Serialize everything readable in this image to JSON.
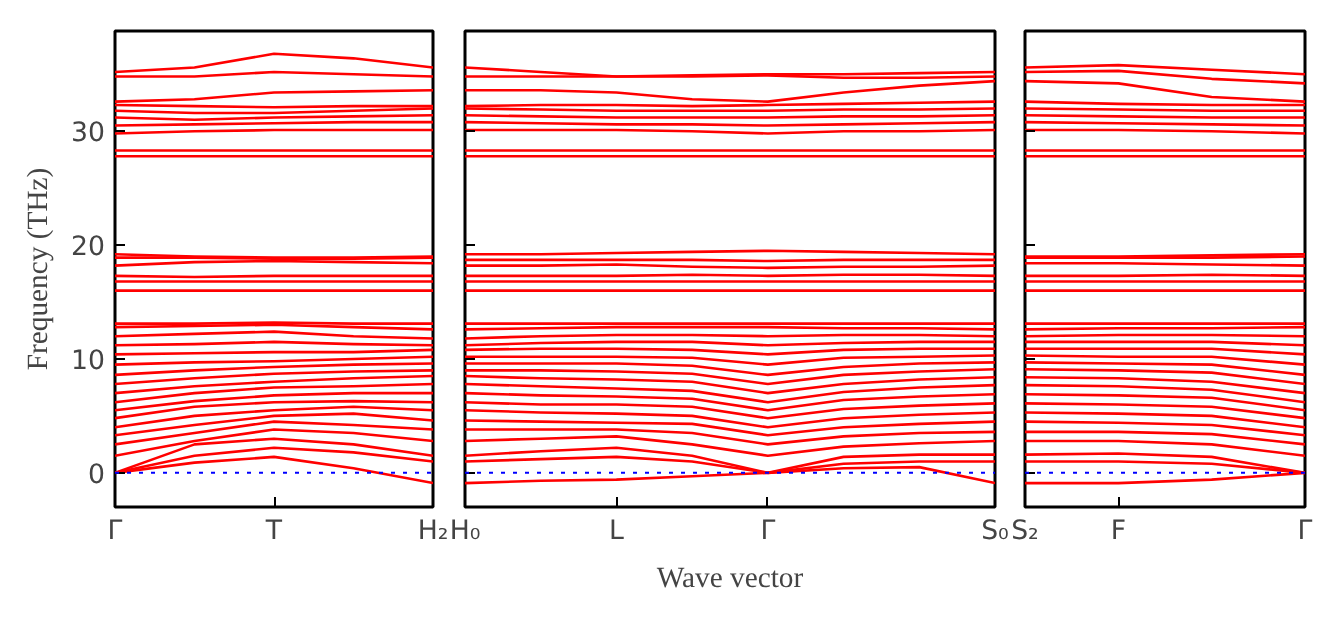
{
  "chart_data": [
    {
      "type": "line",
      "ylabel": "Frequency (THz)",
      "categories": [
        "Γ",
        null,
        "T",
        null,
        "H₂"
      ],
      "ylim": [
        -3,
        38.8
      ],
      "yticks": [
        0,
        10,
        20,
        30
      ],
      "line_style": "solid",
      "marker": "none",
      "ref_lines": [
        {
          "axis": "y",
          "value": 0,
          "color": "#0000ff",
          "line_style": "dotted"
        }
      ],
      "series": [
        {
          "color": "#ff0000",
          "values": [
            0,
            0.9,
            1.4,
            0.4,
            -0.9
          ]
        },
        {
          "color": "#ff0000",
          "values": [
            0,
            1.5,
            2.2,
            1.8,
            1.0
          ]
        },
        {
          "color": "#ff0000",
          "values": [
            0,
            2.5,
            3.0,
            2.5,
            1.5
          ]
        },
        {
          "color": "#ff0000",
          "values": [
            1.5,
            2.8,
            3.8,
            3.5,
            2.8
          ]
        },
        {
          "color": "#ff0000",
          "values": [
            2.5,
            3.5,
            4.5,
            4.2,
            3.8
          ]
        },
        {
          "color": "#ff0000",
          "values": [
            3.3,
            4.2,
            5.0,
            5.2,
            4.6
          ]
        },
        {
          "color": "#ff0000",
          "values": [
            4.0,
            5.0,
            5.5,
            5.8,
            5.5
          ]
        },
        {
          "color": "#ff0000",
          "values": [
            4.8,
            5.8,
            6.2,
            6.3,
            6.2
          ]
        },
        {
          "color": "#ff0000",
          "values": [
            5.5,
            6.3,
            6.8,
            7.0,
            7.0
          ]
        },
        {
          "color": "#ff0000",
          "values": [
            6.2,
            7.0,
            7.5,
            7.6,
            7.8
          ]
        },
        {
          "color": "#ff0000",
          "values": [
            7.0,
            7.6,
            8.0,
            8.3,
            8.5
          ]
        },
        {
          "color": "#ff0000",
          "values": [
            7.8,
            8.3,
            8.7,
            8.9,
            9.0
          ]
        },
        {
          "color": "#ff0000",
          "values": [
            8.6,
            9.0,
            9.3,
            9.5,
            9.6
          ]
        },
        {
          "color": "#ff0000",
          "values": [
            9.5,
            9.7,
            9.8,
            10.0,
            10.2
          ]
        },
        {
          "color": "#ff0000",
          "values": [
            10.4,
            10.5,
            10.6,
            10.6,
            10.8
          ]
        },
        {
          "color": "#ff0000",
          "values": [
            11.2,
            11.3,
            11.5,
            11.3,
            11.2
          ]
        },
        {
          "color": "#ff0000",
          "values": [
            12.0,
            12.2,
            12.4,
            12.0,
            11.8
          ]
        },
        {
          "color": "#ff0000",
          "values": [
            12.8,
            12.9,
            13.0,
            12.8,
            12.6
          ]
        },
        {
          "color": "#ff0000",
          "values": [
            13.1,
            13.1,
            13.2,
            13.1,
            13.1
          ]
        },
        {
          "color": "#ff0000",
          "values": [
            16.0,
            16.0,
            16.0,
            16.0,
            16.0
          ]
        },
        {
          "color": "#ff0000",
          "values": [
            16.8,
            16.8,
            16.8,
            16.8,
            16.8
          ]
        },
        {
          "color": "#ff0000",
          "values": [
            17.3,
            17.2,
            17.3,
            17.3,
            17.3
          ]
        },
        {
          "color": "#ff0000",
          "values": [
            18.2,
            18.5,
            18.6,
            18.5,
            18.4
          ]
        },
        {
          "color": "#ff0000",
          "values": [
            18.9,
            18.9,
            18.8,
            18.8,
            18.9
          ]
        },
        {
          "color": "#ff0000",
          "values": [
            19.2,
            19.0,
            18.9,
            18.9,
            19.0
          ]
        },
        {
          "color": "#ff0000",
          "values": [
            27.8,
            27.8,
            27.8,
            27.8,
            27.8
          ]
        },
        {
          "color": "#ff0000",
          "values": [
            28.3,
            28.3,
            28.3,
            28.3,
            28.3
          ]
        },
        {
          "color": "#ff0000",
          "values": [
            29.8,
            30.0,
            30.1,
            30.1,
            30.1
          ]
        },
        {
          "color": "#ff0000",
          "values": [
            30.5,
            30.6,
            30.7,
            30.8,
            30.8
          ]
        },
        {
          "color": "#ff0000",
          "values": [
            31.2,
            31.0,
            31.2,
            31.3,
            31.4
          ]
        },
        {
          "color": "#ff0000",
          "values": [
            31.8,
            31.6,
            31.6,
            31.8,
            32.0
          ]
        },
        {
          "color": "#ff0000",
          "values": [
            32.3,
            32.2,
            32.1,
            32.2,
            32.2
          ]
        },
        {
          "color": "#ff0000",
          "values": [
            32.6,
            32.8,
            33.4,
            33.5,
            33.6
          ]
        },
        {
          "color": "#ff0000",
          "values": [
            34.8,
            34.8,
            35.2,
            35.0,
            34.8
          ]
        },
        {
          "color": "#ff0000",
          "values": [
            35.2,
            35.6,
            36.8,
            36.4,
            35.6
          ]
        }
      ]
    },
    {
      "type": "line",
      "xlabel": "Wave vector",
      "categories": [
        "H₀",
        null,
        "L",
        null,
        "Γ",
        null,
        null,
        "S₀"
      ],
      "ylim": [
        -3,
        38.8
      ],
      "yticks": [
        0,
        10,
        20,
        30
      ],
      "tick_labels": "x",
      "line_style": "solid",
      "marker": "none",
      "ref_lines": [
        {
          "axis": "y",
          "value": 0,
          "color": "#0000ff",
          "line_style": "dotted"
        }
      ],
      "series": [
        {
          "color": "#ff0000",
          "values": [
            -0.9,
            -0.7,
            -0.6,
            -0.3,
            0,
            0.4,
            0.5,
            -0.9
          ]
        },
        {
          "color": "#ff0000",
          "values": [
            1.0,
            1.2,
            1.4,
            1.0,
            0,
            0.8,
            1.0,
            1.0
          ]
        },
        {
          "color": "#ff0000",
          "values": [
            1.5,
            1.9,
            2.2,
            1.5,
            0,
            1.4,
            1.6,
            1.6
          ]
        },
        {
          "color": "#ff0000",
          "values": [
            2.8,
            3.0,
            3.2,
            2.5,
            1.5,
            2.3,
            2.6,
            2.8
          ]
        },
        {
          "color": "#ff0000",
          "values": [
            3.8,
            3.8,
            3.8,
            3.5,
            2.5,
            3.2,
            3.5,
            3.6
          ]
        },
        {
          "color": "#ff0000",
          "values": [
            4.6,
            4.5,
            4.4,
            4.3,
            3.3,
            4.0,
            4.3,
            4.5
          ]
        },
        {
          "color": "#ff0000",
          "values": [
            5.5,
            5.3,
            5.2,
            5.0,
            4.0,
            4.8,
            5.1,
            5.3
          ]
        },
        {
          "color": "#ff0000",
          "values": [
            6.2,
            6.0,
            6.0,
            5.8,
            4.8,
            5.6,
            5.9,
            6.1
          ]
        },
        {
          "color": "#ff0000",
          "values": [
            7.0,
            6.8,
            6.7,
            6.5,
            5.5,
            6.4,
            6.7,
            6.9
          ]
        },
        {
          "color": "#ff0000",
          "values": [
            7.8,
            7.6,
            7.4,
            7.2,
            6.2,
            7.1,
            7.5,
            7.7
          ]
        },
        {
          "color": "#ff0000",
          "values": [
            8.5,
            8.3,
            8.2,
            8.0,
            7.0,
            7.8,
            8.2,
            8.4
          ]
        },
        {
          "color": "#ff0000",
          "values": [
            9.0,
            9.0,
            8.9,
            8.7,
            7.8,
            8.6,
            8.9,
            9.1
          ]
        },
        {
          "color": "#ff0000",
          "values": [
            9.6,
            9.6,
            9.6,
            9.4,
            8.6,
            9.3,
            9.6,
            9.7
          ]
        },
        {
          "color": "#ff0000",
          "values": [
            10.2,
            10.2,
            10.2,
            10.1,
            9.5,
            10.1,
            10.2,
            10.3
          ]
        },
        {
          "color": "#ff0000",
          "values": [
            10.8,
            10.9,
            10.9,
            10.8,
            10.4,
            10.8,
            10.9,
            10.9
          ]
        },
        {
          "color": "#ff0000",
          "values": [
            11.2,
            11.4,
            11.5,
            11.5,
            11.2,
            11.4,
            11.5,
            11.5
          ]
        },
        {
          "color": "#ff0000",
          "values": [
            11.8,
            12.0,
            12.1,
            12.1,
            12.0,
            12.1,
            12.1,
            12.0
          ]
        },
        {
          "color": "#ff0000",
          "values": [
            12.6,
            12.7,
            12.8,
            12.8,
            12.8,
            12.7,
            12.7,
            12.6
          ]
        },
        {
          "color": "#ff0000",
          "values": [
            13.1,
            13.1,
            13.1,
            13.1,
            13.1,
            13.1,
            13.1,
            13.1
          ]
        },
        {
          "color": "#ff0000",
          "values": [
            16.0,
            16.0,
            16.0,
            16.0,
            16.0,
            16.0,
            16.0,
            16.0
          ]
        },
        {
          "color": "#ff0000",
          "values": [
            16.8,
            16.8,
            16.8,
            16.8,
            16.8,
            16.8,
            16.8,
            16.8
          ]
        },
        {
          "color": "#ff0000",
          "values": [
            17.3,
            17.3,
            17.3,
            17.4,
            17.3,
            17.4,
            17.4,
            17.3
          ]
        },
        {
          "color": "#ff0000",
          "values": [
            18.2,
            18.2,
            18.3,
            18.1,
            18.0,
            18.1,
            18.1,
            18.2
          ]
        },
        {
          "color": "#ff0000",
          "values": [
            18.7,
            18.7,
            18.7,
            18.7,
            18.6,
            18.7,
            18.7,
            18.7
          ]
        },
        {
          "color": "#ff0000",
          "values": [
            19.2,
            19.2,
            19.3,
            19.4,
            19.5,
            19.4,
            19.3,
            19.2
          ]
        },
        {
          "color": "#ff0000",
          "values": [
            27.8,
            27.8,
            27.8,
            27.8,
            27.8,
            27.8,
            27.8,
            27.8
          ]
        },
        {
          "color": "#ff0000",
          "values": [
            28.3,
            28.3,
            28.3,
            28.3,
            28.3,
            28.3,
            28.3,
            28.3
          ]
        },
        {
          "color": "#ff0000",
          "values": [
            30.1,
            30.1,
            30.1,
            30.0,
            29.8,
            30.0,
            30.0,
            30.1
          ]
        },
        {
          "color": "#ff0000",
          "values": [
            30.8,
            30.7,
            30.6,
            30.6,
            30.5,
            30.6,
            30.7,
            30.8
          ]
        },
        {
          "color": "#ff0000",
          "values": [
            31.4,
            31.3,
            31.2,
            31.2,
            31.2,
            31.3,
            31.3,
            31.4
          ]
        },
        {
          "color": "#ff0000",
          "values": [
            32.0,
            31.9,
            31.8,
            31.8,
            31.8,
            31.9,
            31.9,
            32.0
          ]
        },
        {
          "color": "#ff0000",
          "values": [
            32.2,
            32.3,
            32.3,
            32.2,
            32.3,
            32.4,
            32.5,
            32.6
          ]
        },
        {
          "color": "#ff0000",
          "values": [
            33.6,
            33.6,
            33.4,
            32.8,
            32.6,
            33.4,
            34.0,
            34.4
          ]
        },
        {
          "color": "#ff0000",
          "values": [
            34.8,
            34.8,
            34.8,
            34.9,
            35.0,
            35.0,
            35.1,
            35.2
          ]
        },
        {
          "color": "#ff0000",
          "values": [
            35.6,
            35.2,
            34.8,
            34.8,
            34.9,
            34.7,
            34.7,
            34.8
          ]
        }
      ]
    },
    {
      "type": "line",
      "categories": [
        "S₂",
        "F",
        null,
        "Γ"
      ],
      "ylim": [
        -3,
        38.8
      ],
      "yticks": [
        0,
        10,
        20,
        30
      ],
      "tick_labels": "x",
      "line_style": "solid",
      "marker": "none",
      "ref_lines": [
        {
          "axis": "y",
          "value": 0,
          "color": "#0000ff",
          "line_style": "dotted"
        }
      ],
      "series": [
        {
          "color": "#ff0000",
          "values": [
            -0.9,
            -0.9,
            -0.6,
            0
          ]
        },
        {
          "color": "#ff0000",
          "values": [
            1.0,
            1.0,
            0.8,
            0
          ]
        },
        {
          "color": "#ff0000",
          "values": [
            1.6,
            1.7,
            1.4,
            0
          ]
        },
        {
          "color": "#ff0000",
          "values": [
            2.8,
            2.8,
            2.5,
            1.5
          ]
        },
        {
          "color": "#ff0000",
          "values": [
            3.6,
            3.6,
            3.4,
            2.5
          ]
        },
        {
          "color": "#ff0000",
          "values": [
            4.5,
            4.4,
            4.2,
            3.3
          ]
        },
        {
          "color": "#ff0000",
          "values": [
            5.3,
            5.2,
            5.0,
            4.0
          ]
        },
        {
          "color": "#ff0000",
          "values": [
            6.1,
            6.0,
            5.8,
            4.8
          ]
        },
        {
          "color": "#ff0000",
          "values": [
            6.9,
            6.8,
            6.6,
            5.5
          ]
        },
        {
          "color": "#ff0000",
          "values": [
            7.7,
            7.6,
            7.3,
            6.2
          ]
        },
        {
          "color": "#ff0000",
          "values": [
            8.4,
            8.3,
            8.0,
            7.0
          ]
        },
        {
          "color": "#ff0000",
          "values": [
            9.1,
            9.0,
            8.8,
            7.8
          ]
        },
        {
          "color": "#ff0000",
          "values": [
            9.7,
            9.6,
            9.5,
            8.6
          ]
        },
        {
          "color": "#ff0000",
          "values": [
            10.3,
            10.2,
            10.2,
            9.5
          ]
        },
        {
          "color": "#ff0000",
          "values": [
            10.9,
            10.9,
            10.9,
            10.4
          ]
        },
        {
          "color": "#ff0000",
          "values": [
            11.5,
            11.5,
            11.5,
            11.2
          ]
        },
        {
          "color": "#ff0000",
          "values": [
            12.0,
            12.1,
            12.1,
            12.0
          ]
        },
        {
          "color": "#ff0000",
          "values": [
            12.6,
            12.7,
            12.7,
            12.8
          ]
        },
        {
          "color": "#ff0000",
          "values": [
            13.1,
            13.1,
            13.1,
            13.1
          ]
        },
        {
          "color": "#ff0000",
          "values": [
            16.0,
            16.0,
            16.0,
            16.0
          ]
        },
        {
          "color": "#ff0000",
          "values": [
            16.8,
            16.8,
            16.8,
            16.8
          ]
        },
        {
          "color": "#ff0000",
          "values": [
            17.3,
            17.3,
            17.4,
            17.3
          ]
        },
        {
          "color": "#ff0000",
          "values": [
            18.4,
            18.4,
            18.3,
            18.2
          ]
        },
        {
          "color": "#ff0000",
          "values": [
            18.9,
            18.9,
            18.9,
            19.0
          ]
        },
        {
          "color": "#ff0000",
          "values": [
            19.0,
            19.0,
            19.1,
            19.2
          ]
        },
        {
          "color": "#ff0000",
          "values": [
            27.8,
            27.8,
            27.8,
            27.8
          ]
        },
        {
          "color": "#ff0000",
          "values": [
            28.3,
            28.3,
            28.3,
            28.3
          ]
        },
        {
          "color": "#ff0000",
          "values": [
            30.1,
            30.1,
            30.0,
            29.8
          ]
        },
        {
          "color": "#ff0000",
          "values": [
            30.8,
            30.7,
            30.6,
            30.5
          ]
        },
        {
          "color": "#ff0000",
          "values": [
            31.4,
            31.3,
            31.2,
            31.2
          ]
        },
        {
          "color": "#ff0000",
          "values": [
            32.0,
            31.9,
            31.8,
            31.8
          ]
        },
        {
          "color": "#ff0000",
          "values": [
            32.6,
            32.4,
            32.3,
            32.3
          ]
        },
        {
          "color": "#ff0000",
          "values": [
            34.4,
            34.2,
            33.0,
            32.6
          ]
        },
        {
          "color": "#ff0000",
          "values": [
            35.2,
            35.3,
            34.6,
            34.2
          ]
        },
        {
          "color": "#ff0000",
          "values": [
            35.6,
            35.8,
            35.4,
            35.0
          ]
        }
      ]
    }
  ]
}
